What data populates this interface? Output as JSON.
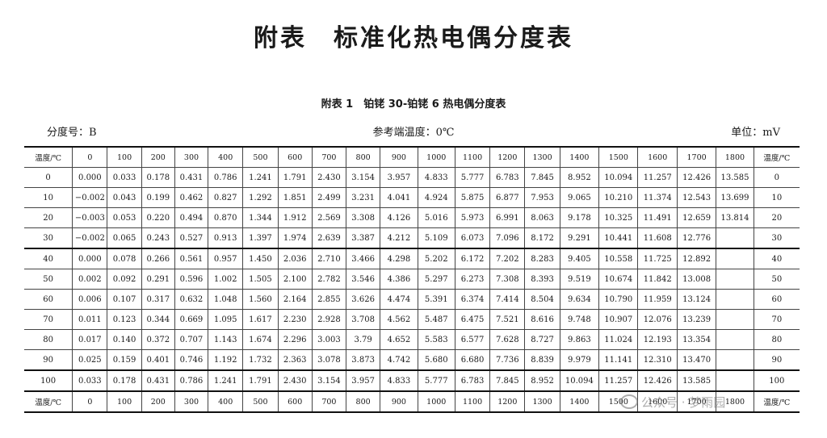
{
  "page": {
    "title": "附表　标准化热电偶分度表",
    "subtitle": "附表 1　铂铑 30-铂铑 6 热电偶分度表",
    "meta": {
      "index_no": "分度号：B",
      "reference": "参考端温度：0℃",
      "unit": "单位：mV"
    },
    "watermark": "公众号 · 梦雨园"
  },
  "table": {
    "header": [
      "温度/℃",
      "0",
      "100",
      "200",
      "300",
      "400",
      "500",
      "600",
      "700",
      "800",
      "900",
      "1000",
      "1100",
      "1200",
      "1300",
      "1400",
      "1500",
      "1600",
      "1700",
      "1800",
      "温度/℃"
    ],
    "rows": [
      [
        "0",
        "0.000",
        "0.033",
        "0.178",
        "0.431",
        "0.786",
        "1.241",
        "1.791",
        "2.430",
        "3.154",
        "3.957",
        "4.833",
        "5.777",
        "6.783",
        "7.845",
        "8.952",
        "10.094",
        "11.257",
        "12.426",
        "13.585",
        "0"
      ],
      [
        "10",
        "−0.002",
        "0.043",
        "0.199",
        "0.462",
        "0.827",
        "1.292",
        "1.851",
        "2.499",
        "3.231",
        "4.041",
        "4.924",
        "5.875",
        "6.877",
        "7.953",
        "9.065",
        "10.210",
        "11.374",
        "12.543",
        "13.699",
        "10"
      ],
      [
        "20",
        "−0.003",
        "0.053",
        "0.220",
        "0.494",
        "0.870",
        "1.344",
        "1.912",
        "2.569",
        "3.308",
        "4.126",
        "5.016",
        "5.973",
        "6.991",
        "8.063",
        "9.178",
        "10.325",
        "11.491",
        "12.659",
        "13.814",
        "20"
      ],
      [
        "30",
        "−0.002",
        "0.065",
        "0.243",
        "0.527",
        "0.913",
        "1.397",
        "1.974",
        "2.639",
        "3.387",
        "4.212",
        "5.109",
        "6.073",
        "7.096",
        "8.172",
        "9.291",
        "10.441",
        "11.608",
        "12.776",
        "",
        "30"
      ],
      [
        "40",
        "0.000",
        "0.078",
        "0.266",
        "0.561",
        "0.957",
        "1.450",
        "2.036",
        "2.710",
        "3.466",
        "4.298",
        "5.202",
        "6.172",
        "7.202",
        "8.283",
        "9.405",
        "10.558",
        "11.725",
        "12.892",
        "",
        "40"
      ],
      [
        "50",
        "0.002",
        "0.092",
        "0.291",
        "0.596",
        "1.002",
        "1.505",
        "2.100",
        "2.782",
        "3.546",
        "4.386",
        "5.297",
        "6.273",
        "7.308",
        "8.393",
        "9.519",
        "10.674",
        "11.842",
        "13.008",
        "",
        "50"
      ],
      [
        "60",
        "0.006",
        "0.107",
        "0.317",
        "0.632",
        "1.048",
        "1.560",
        "2.164",
        "2.855",
        "3.626",
        "4.474",
        "5.391",
        "6.374",
        "7.414",
        "8.504",
        "9.634",
        "10.790",
        "11.959",
        "13.124",
        "",
        "60"
      ],
      [
        "70",
        "0.011",
        "0.123",
        "0.344",
        "0.669",
        "1.095",
        "1.617",
        "2.230",
        "2.928",
        "3.708",
        "4.562",
        "5.487",
        "6.475",
        "7.521",
        "8.616",
        "9.748",
        "10.907",
        "12.076",
        "13.239",
        "",
        "70"
      ],
      [
        "80",
        "0.017",
        "0.140",
        "0.372",
        "0.707",
        "1.143",
        "1.674",
        "2.296",
        "3.003",
        "3.79",
        "4.652",
        "5.583",
        "6.577",
        "7.628",
        "8.727",
        "9.863",
        "11.024",
        "12.193",
        "13.354",
        "",
        "80"
      ],
      [
        "90",
        "0.025",
        "0.159",
        "0.401",
        "0.746",
        "1.192",
        "1.732",
        "2.363",
        "3.078",
        "3.873",
        "4.742",
        "5.680",
        "6.680",
        "7.736",
        "8.839",
        "9.979",
        "11.141",
        "12.310",
        "13.470",
        "",
        "90"
      ],
      [
        "100",
        "0.033",
        "0.178",
        "0.431",
        "0.786",
        "1.241",
        "1.791",
        "2.430",
        "3.154",
        "3.957",
        "4.833",
        "5.777",
        "6.783",
        "7.845",
        "8.952",
        "10.094",
        "11.257",
        "12.426",
        "13.585",
        "",
        "100"
      ]
    ],
    "footer": [
      "温度/℃",
      "0",
      "100",
      "200",
      "300",
      "400",
      "500",
      "600",
      "700",
      "800",
      "900",
      "1000",
      "1100",
      "1200",
      "1300",
      "1400",
      "1500",
      "1600",
      "1700",
      "1800",
      "温度/℃"
    ]
  }
}
